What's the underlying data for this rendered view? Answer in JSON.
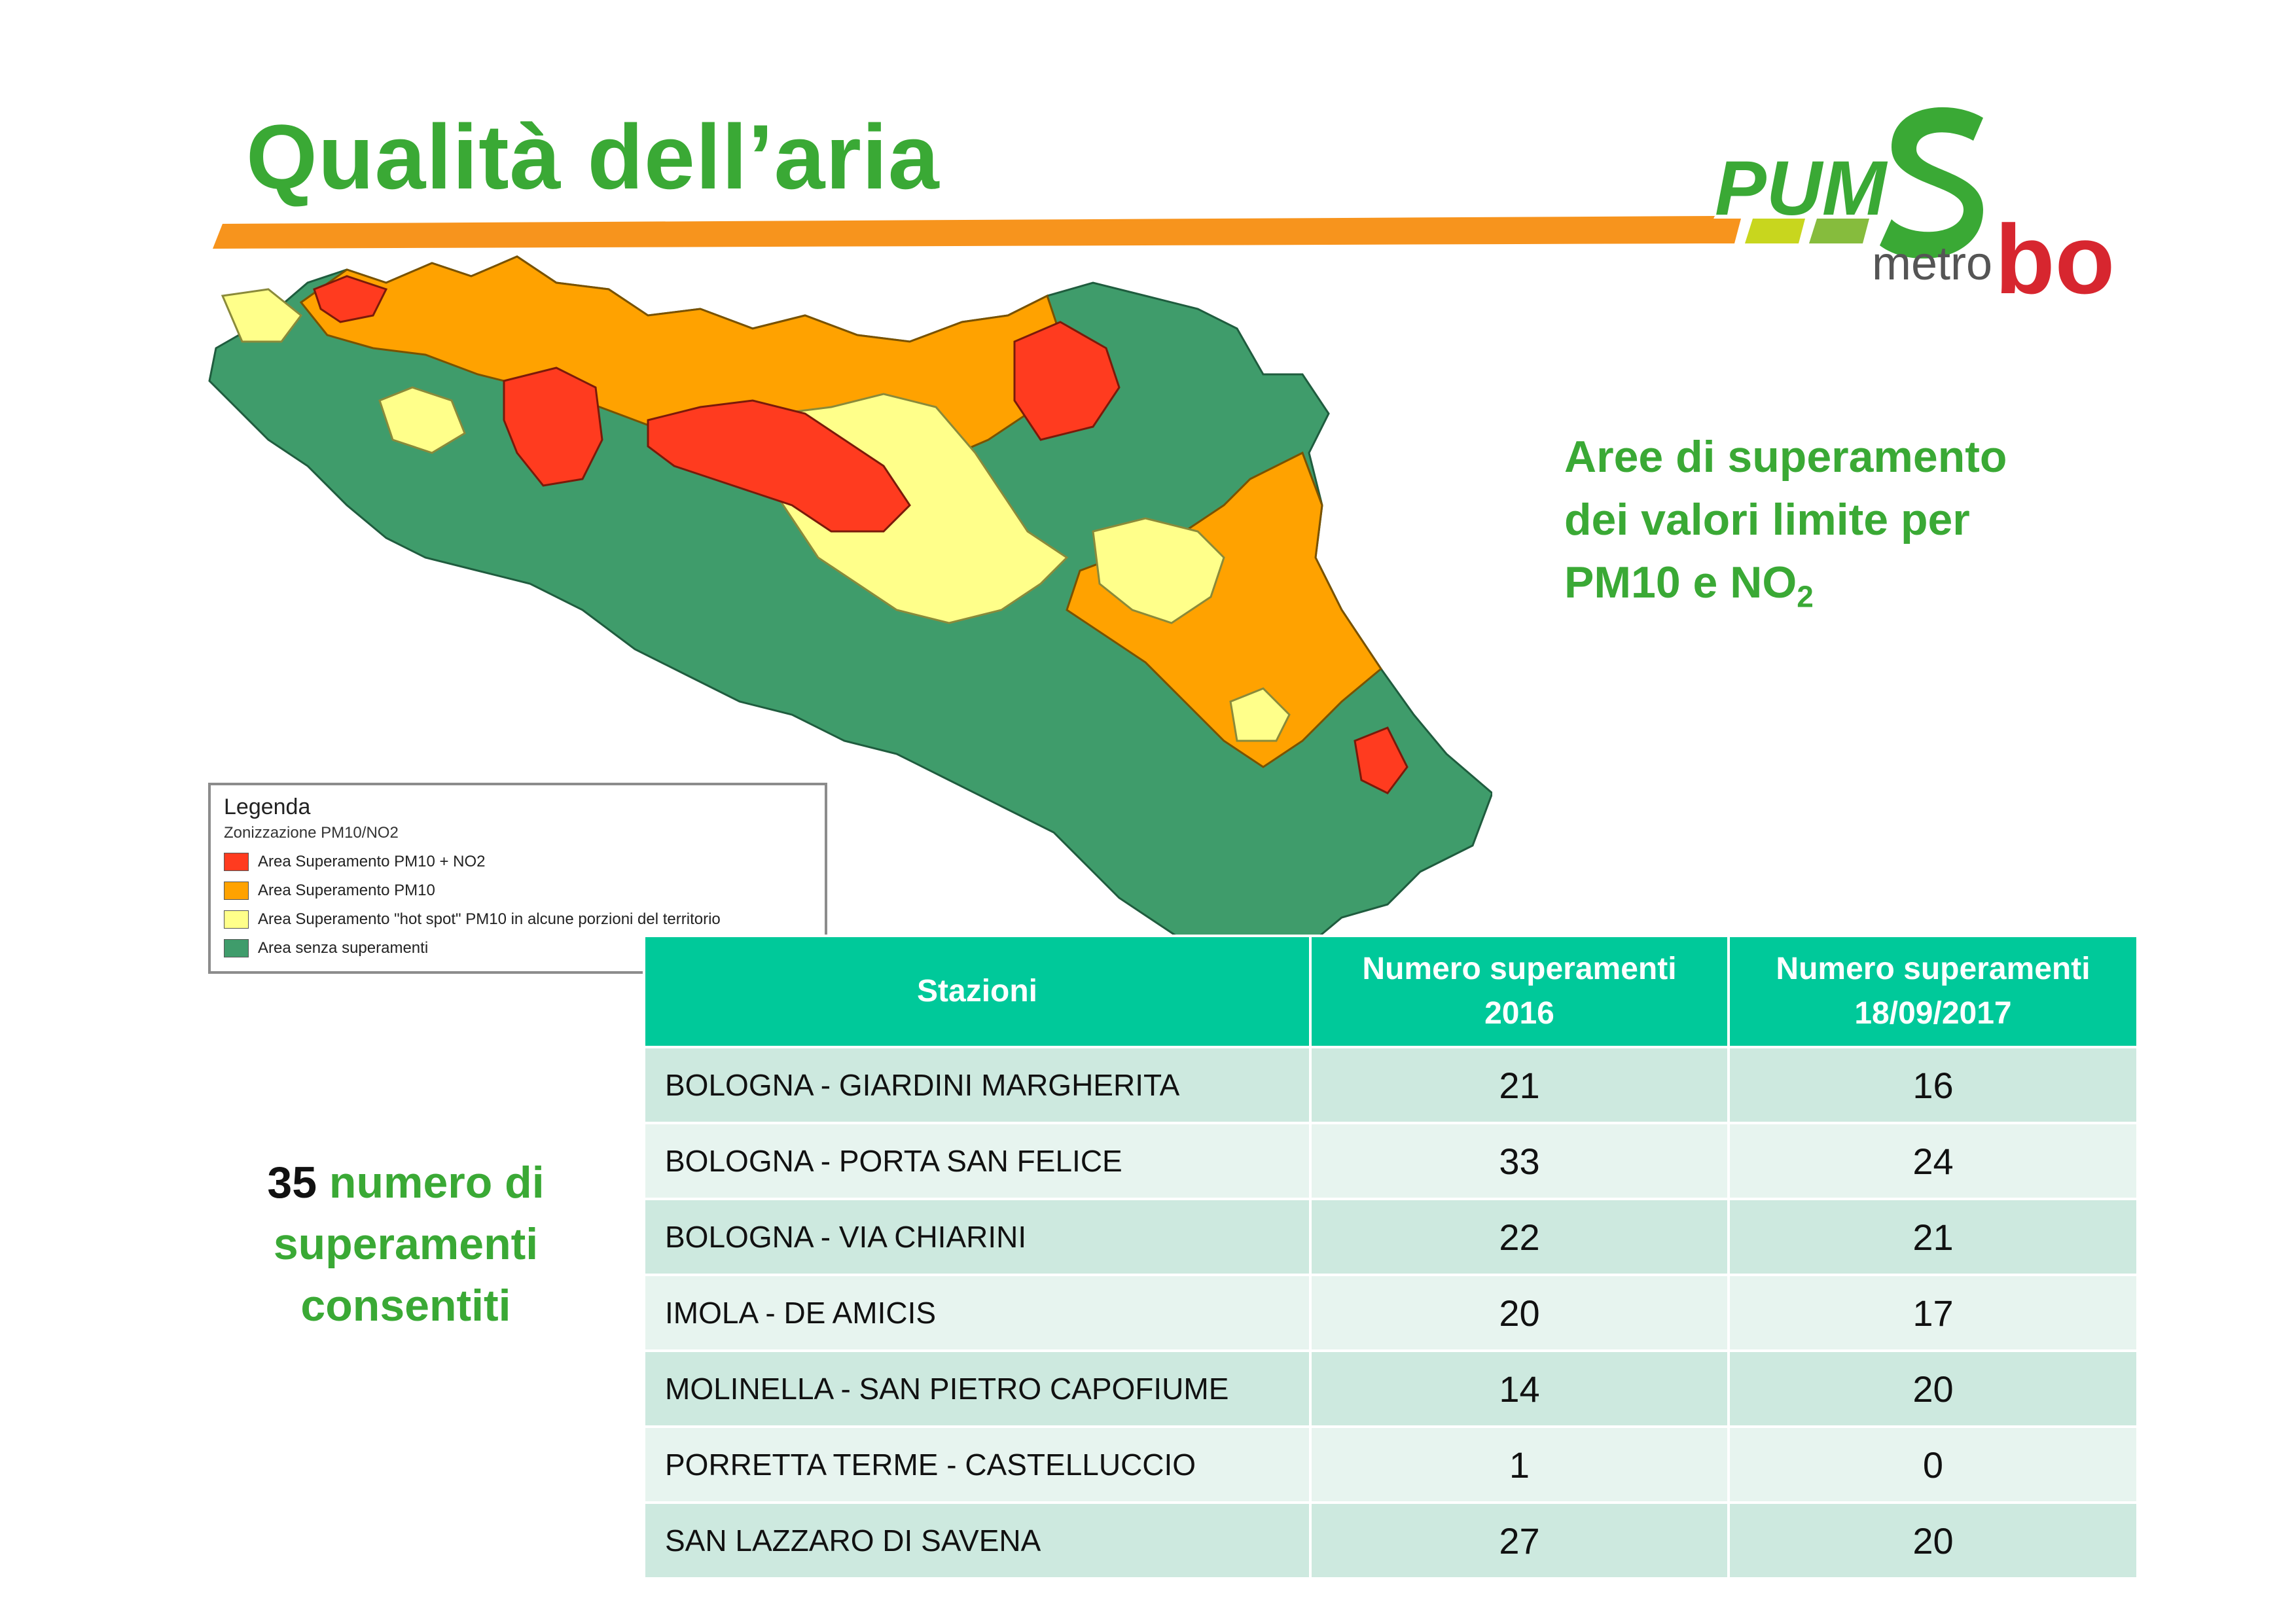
{
  "page": {
    "title": "Qualità dell’aria"
  },
  "logo": {
    "pum": "PUM",
    "s": "S",
    "metro": "metro",
    "bo": "bo"
  },
  "side_title": {
    "line1": "Aree di superamento",
    "line2": "dei valori limite per",
    "line3_prefix": "PM10 e NO",
    "line3_sub": "2"
  },
  "legend": {
    "title": "Legenda",
    "subtitle": "Zonizzazione PM10/NO2",
    "items": [
      {
        "label": "Area Superamento PM10 + NO2",
        "color": "#ff3b1f"
      },
      {
        "label": "Area Superamento PM10",
        "color": "#ffa200"
      },
      {
        "label": "Area Superamento \"hot spot\" PM10 in alcune porzioni del territorio",
        "color": "#ffff8a"
      },
      {
        "label": "Area senza superamenti",
        "color": "#3f9c6b"
      }
    ]
  },
  "note": {
    "number": "35",
    "text1": "numero di",
    "text2": "superamenti",
    "text3": "consentiti"
  },
  "table": {
    "headers": [
      "Stazioni",
      "Numero superamenti 2016",
      "Numero superamenti 18/09/2017"
    ],
    "header_lines": [
      [
        "Stazioni"
      ],
      [
        "Numero superamenti",
        "2016"
      ],
      [
        "Numero superamenti",
        "18/09/2017"
      ]
    ],
    "rows": [
      {
        "station": "BOLOGNA - GIARDINI MARGHERITA",
        "y2016": "21",
        "y2017": "16"
      },
      {
        "station": "BOLOGNA - PORTA SAN FELICE",
        "y2016": "33",
        "y2017": "24"
      },
      {
        "station": "BOLOGNA - VIA CHIARINI",
        "y2016": "22",
        "y2017": "21"
      },
      {
        "station": "IMOLA - DE AMICIS",
        "y2016": "20",
        "y2017": "17"
      },
      {
        "station": "MOLINELLA - SAN PIETRO CAPOFIUME",
        "y2016": "14",
        "y2017": "20"
      },
      {
        "station": "PORRETTA TERME - CASTELLUCCIO",
        "y2016": "1",
        "y2017": "0"
      },
      {
        "station": "SAN LAZZARO DI SAVENA",
        "y2016": "27",
        "y2017": "20"
      }
    ]
  },
  "colors": {
    "green": "#3aa935",
    "orange": "#f7941d",
    "teal": "#00c99a",
    "red": "#d7262f"
  }
}
